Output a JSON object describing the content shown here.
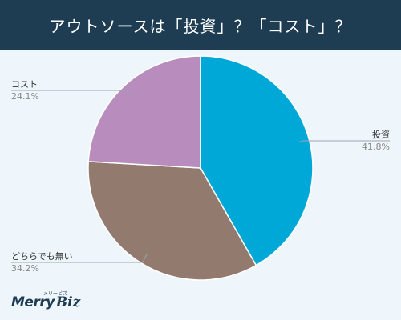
{
  "header": {
    "title": "アウトソースは「投資」？「コスト」？"
  },
  "logo": {
    "word1": "Merry",
    "word2": "Biz",
    "kana": "メリービズ"
  },
  "colors": {
    "header_bg": "#1e3d52",
    "background": "#eef6fb"
  },
  "chart_data": {
    "type": "pie",
    "title": "アウトソースは「投資」？「コスト」？",
    "slices": [
      {
        "label": "投資",
        "value": 41.8,
        "display": "41.8%",
        "color": "#00a8d8"
      },
      {
        "label": "どちらでも無い",
        "value": 34.2,
        "display": "34.2%",
        "color": "#927b6e"
      },
      {
        "label": "コスト",
        "value": 24.1,
        "display": "24.1%",
        "color": "#b88cbc"
      }
    ],
    "start": "top",
    "direction": "clockwise"
  }
}
